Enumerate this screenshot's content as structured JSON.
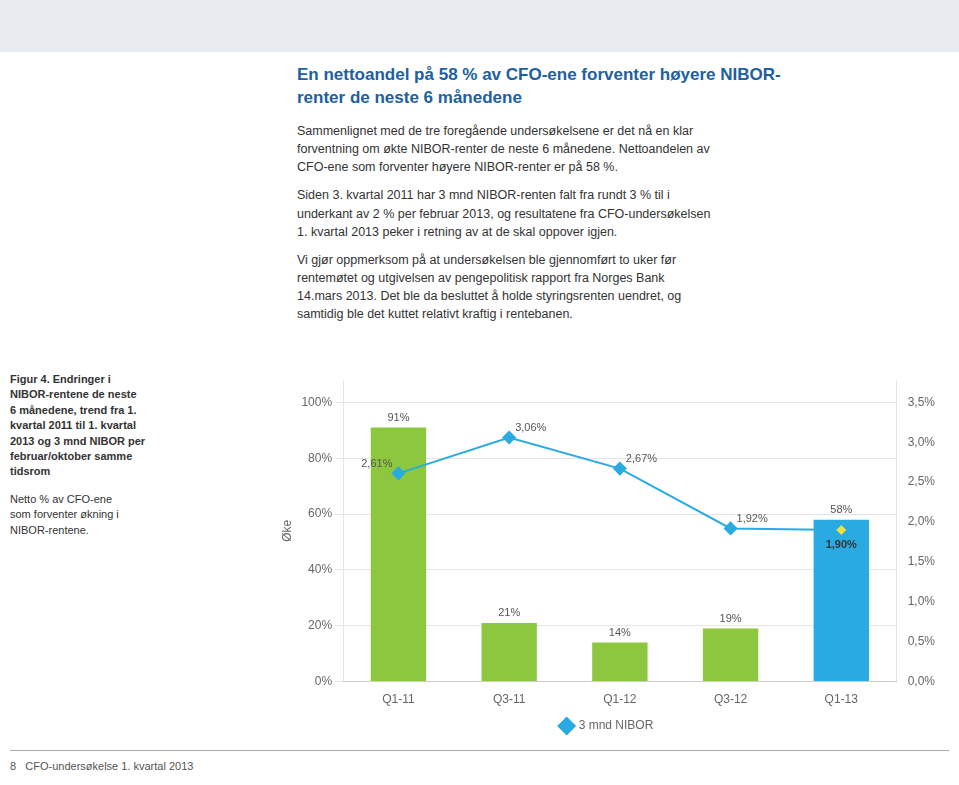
{
  "chart_data": {
    "type": "bar",
    "title": "En nettoandel på 58 % av CFO-ene forventer høyere NIBOR-\nrenter de neste 6 månedene",
    "annotations": [
      "Sammenlignet med de tre foregående undersøkelsene er det nå en klar\nforventning om økte NIBOR-renter de neste 6 månedene. Nettoandelen av\nCFO-ene som forventer høyere NIBOR-renter er på 58 %.",
      "Siden 3. kvartal 2011 har 3 mnd NIBOR-renten falt fra rundt 3 % til i\nunderkant av 2 % per februar 2013, og resultatene fra CFO-undersøkelsen\n1. kvartal 2013 peker i retning av at de skal oppover igjen.",
      "Vi gjør oppmerksom på at undersøkelsen ble gjennomført to uker før\nrentemøtet og utgivelsen av pengepolitisk rapport fra Norges Bank\n14.mars 2013. Det ble da besluttet å holde styringsrenten uendret, og\nsamtidig ble det kuttet relativt kraftig i rentebanen.",
      "Figur 4. Endringer i\nNIBOR-rentene de neste\n6 månedene, trend fra 1.\nkvartal 2011 til 1. kvartal\n2013 og 3 mnd NIBOR per\nfebruar/oktober samme\ntidsrom",
      "Netto % av CFO-ene\nsom forventer økning i\nNIBOR-rentene.",
      "8   CFO-undersøkelse 1. kvartal 2013"
    ],
    "categories": [
      "Q1-11",
      "Q3-11",
      "Q1-12",
      "Q3-12",
      "Q1-13"
    ],
    "series": [
      {
        "type": "bar",
        "colors": [
          "#8dc63f",
          "#8dc63f",
          "#8dc63f",
          "#8dc63f",
          "#29abe2"
        ],
        "values": [
          91,
          21,
          14,
          19,
          58
        ],
        "value_labels": [
          "91%",
          "21%",
          "14%",
          "19%",
          "58%"
        ]
      },
      {
        "name": "3 mnd NIBOR",
        "type": "line",
        "axis": "y2",
        "color": "#29abe2",
        "marker": "diamond",
        "colors": [
          "#29abe2",
          "#29abe2",
          "#29abe2",
          "#29abe2",
          "#f0e040"
        ],
        "values": [
          2.61,
          3.06,
          2.67,
          1.92,
          1.9
        ],
        "value_labels": [
          "2,61%",
          "3,06%",
          "2,67%",
          "1,92%",
          "1,90%"
        ]
      }
    ],
    "ylabel": "Øke",
    "ylim": [
      0,
      108
    ],
    "yticks": [
      {
        "value": 0,
        "label": "0%"
      },
      {
        "value": 20,
        "label": "20%"
      },
      {
        "value": 40,
        "label": "40%"
      },
      {
        "value": 60,
        "label": "60%"
      },
      {
        "value": 80,
        "label": "80%"
      },
      {
        "value": 100,
        "label": "100%"
      }
    ],
    "y2lim": [
      0,
      3.78
    ],
    "y2ticks": [
      {
        "value": 0.0,
        "label": "0,0%"
      },
      {
        "value": 0.5,
        "label": "0,5%"
      },
      {
        "value": 1.0,
        "label": "1,0%"
      },
      {
        "value": 1.5,
        "label": "1,5%"
      },
      {
        "value": 2.0,
        "label": "2,0%"
      },
      {
        "value": 2.5,
        "label": "2,5%"
      },
      {
        "value": 3.0,
        "label": "3,0%"
      },
      {
        "value": 3.5,
        "label": "3,5%"
      }
    ],
    "grid": true,
    "legend": "bottom",
    "data_labels": true
  }
}
